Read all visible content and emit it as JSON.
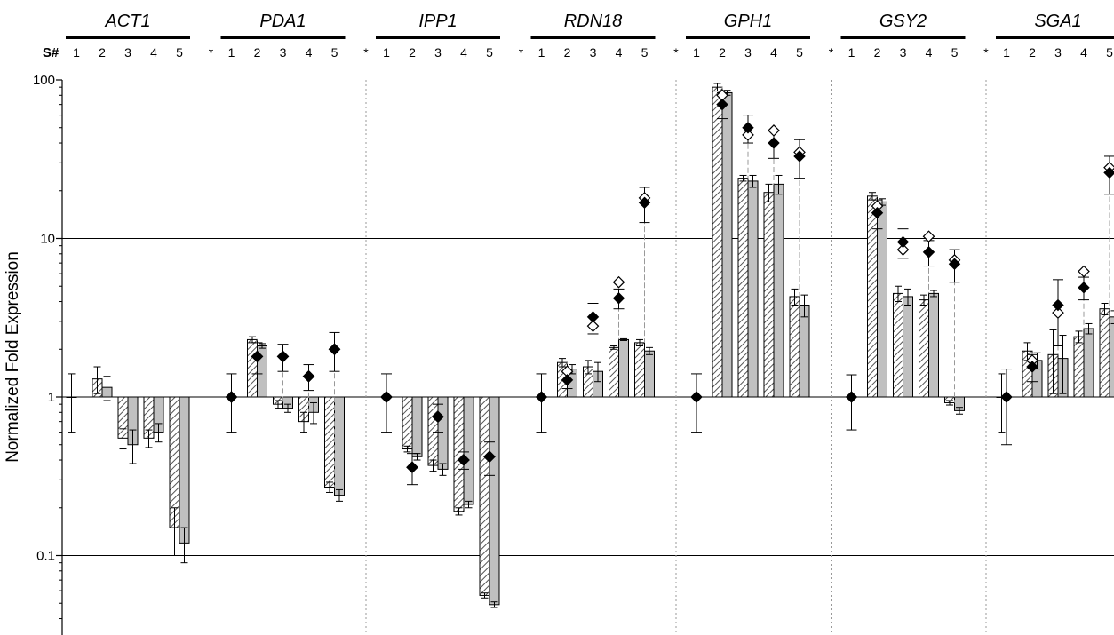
{
  "chart_data": {
    "type": "bar",
    "yscale": "log",
    "ylim": [
      0.04,
      100
    ],
    "ylabel": "Normalized Fold Expression",
    "yticks": [
      {
        "value": 0.1,
        "label": "0.1"
      },
      {
        "value": 1,
        "label": "1"
      },
      {
        "value": 10,
        "label": "10"
      },
      {
        "value": 100,
        "label": "100"
      }
    ],
    "sample_header": "S#",
    "sample_labels": [
      "1",
      "2",
      "3",
      "4",
      "5"
    ],
    "separator_label": "*",
    "series": [
      {
        "name": "",
        "kind": "hatched-bar"
      },
      {
        "name": "",
        "kind": "gray-bar"
      },
      {
        "name": "",
        "kind": "open-diamond"
      },
      {
        "name": "",
        "kind": "filled-diamond"
      }
    ],
    "colors": {
      "hatched_fill": "#ffffff",
      "hatch_line": "#555555",
      "gray_fill": "#c0c0c0",
      "diamond": "#000000",
      "gridline": "#000000"
    },
    "grid": {
      "major_horizontal": true,
      "vertical_dotted_separators": true
    },
    "genes": [
      {
        "name": "ACT1",
        "hatched": [
          1.0,
          1.3,
          0.55,
          0.55,
          0.15
        ],
        "hatched_err": [
          0.4,
          0.25,
          0.08,
          0.07,
          0.05
        ],
        "gray": [
          null,
          1.15,
          0.5,
          0.6,
          0.12
        ],
        "gray_err": [
          null,
          0.2,
          0.12,
          0.08,
          0.03
        ],
        "open_diamond": [
          null,
          null,
          null,
          null,
          null
        ],
        "filled_diamond": [
          null,
          null,
          null,
          null,
          null
        ],
        "diamond_err": [
          null,
          null,
          null,
          null,
          null
        ]
      },
      {
        "name": "PDA1",
        "hatched": [
          null,
          2.3,
          0.9,
          0.7,
          0.27
        ],
        "hatched_err": [
          null,
          0.1,
          0.05,
          0.1,
          0.02
        ],
        "gray": [
          null,
          2.1,
          0.85,
          0.8,
          0.24
        ],
        "gray_err": [
          null,
          0.07,
          0.05,
          0.12,
          0.02
        ],
        "open_diamond": [
          1.0,
          1.8,
          1.8,
          1.35,
          2.0
        ],
        "filled_diamond": [
          1.0,
          1.8,
          1.8,
          1.35,
          2.0
        ],
        "diamond_err": [
          0.4,
          0.4,
          0.35,
          0.25,
          0.55
        ]
      },
      {
        "name": "IPP1",
        "hatched": [
          null,
          0.47,
          0.37,
          0.19,
          0.056
        ],
        "hatched_err": [
          null,
          0.02,
          0.03,
          0.01,
          0.002
        ],
        "gray": [
          null,
          0.42,
          0.35,
          0.21,
          0.049
        ],
        "gray_err": [
          null,
          0.02,
          0.03,
          0.01,
          0.002
        ],
        "open_diamond": [
          1.0,
          0.36,
          0.75,
          0.4,
          0.42
        ],
        "filled_diamond": [
          1.0,
          0.36,
          0.75,
          0.4,
          0.42
        ],
        "diamond_err": [
          0.4,
          0.08,
          0.15,
          0.05,
          0.1
        ]
      },
      {
        "name": "RDN18",
        "hatched": [
          null,
          1.65,
          1.55,
          2.05,
          2.2
        ],
        "hatched_err": [
          null,
          0.1,
          0.15,
          0.05,
          0.1
        ],
        "gray": [
          null,
          1.5,
          1.45,
          2.3,
          1.95
        ],
        "gray_err": [
          null,
          0.1,
          0.2,
          0.03,
          0.1
        ],
        "open_diamond": [
          null,
          1.45,
          2.8,
          5.3,
          18.0
        ],
        "filled_diamond": [
          1.0,
          1.28,
          3.2,
          4.2,
          16.8
        ],
        "diamond_err": [
          0.4,
          0.15,
          0.7,
          0.6,
          4.2
        ]
      },
      {
        "name": "GPH1",
        "hatched": [
          null,
          90.0,
          24.0,
          19.5,
          4.3
        ],
        "hatched_err": [
          null,
          5.0,
          1.0,
          2.5,
          0.5
        ],
        "gray": [
          null,
          83.0,
          23.0,
          22.0,
          3.8
        ],
        "gray_err": [
          null,
          3.0,
          2.0,
          3.0,
          0.6
        ],
        "open_diamond": [
          null,
          80.0,
          45.0,
          48.0,
          35.0
        ],
        "filled_diamond": [
          1.0,
          70.0,
          50.0,
          40.0,
          33.0
        ],
        "diamond_err": [
          0.4,
          13.0,
          10.0,
          8.0,
          9.0
        ]
      },
      {
        "name": "GSY2",
        "hatched": [
          null,
          18.5,
          4.5,
          4.1,
          0.92
        ],
        "hatched_err": [
          null,
          1.0,
          0.5,
          0.3,
          0.03
        ],
        "gray": [
          null,
          17.0,
          4.3,
          4.5,
          0.82
        ],
        "gray_err": [
          null,
          0.8,
          0.5,
          0.2,
          0.04
        ],
        "open_diamond": [
          null,
          16.0,
          8.5,
          10.3,
          7.3
        ],
        "filled_diamond": [
          1.0,
          14.5,
          9.5,
          8.2,
          6.9
        ],
        "diamond_err": [
          0.38,
          3.0,
          2.0,
          1.5,
          1.6
        ]
      },
      {
        "name": "SGA1",
        "hatched": [
          1.0,
          1.95,
          1.85,
          2.4,
          3.6
        ],
        "hatched_err": [
          0.4,
          0.25,
          0.8,
          0.2,
          0.3
        ],
        "gray": [
          null,
          1.7,
          1.75,
          2.7,
          3.2
        ],
        "gray_err": [
          null,
          0.2,
          0.7,
          0.2,
          0.3
        ],
        "open_diamond": [
          null,
          1.7,
          3.4,
          6.2,
          28.0
        ],
        "filled_diamond": [
          1.0,
          1.55,
          3.8,
          4.9,
          26.0
        ],
        "diamond_err": [
          0.5,
          0.3,
          1.7,
          0.8,
          7.0
        ]
      }
    ]
  }
}
